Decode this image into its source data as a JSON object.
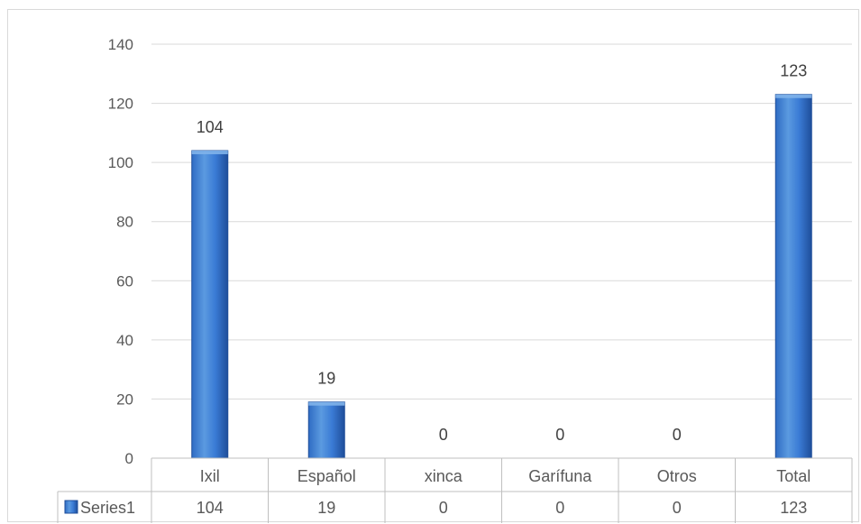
{
  "chart_data": {
    "type": "bar",
    "categories": [
      "Ixil",
      "Español",
      "xinca",
      "Garífuna",
      "Otros",
      "Total"
    ],
    "series": [
      {
        "name": "Series1",
        "values": [
          104,
          19,
          0,
          0,
          0,
          123
        ],
        "color": "#4f81bd"
      }
    ],
    "ylim": [
      0,
      140
    ],
    "yticks": [
      0,
      20,
      40,
      60,
      80,
      100,
      120,
      140
    ],
    "data_labels": true,
    "data_table": true,
    "legend_in_table": true,
    "gridlines": true
  },
  "colors": {
    "bar_light": "#5b9ae0",
    "bar_mid": "#3a7bd5",
    "bar_dark": "#1f4e9a",
    "gridline": "#d9d9d9",
    "table_border": "#bfbfbf"
  }
}
